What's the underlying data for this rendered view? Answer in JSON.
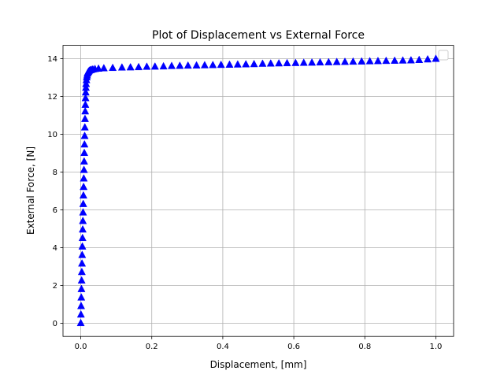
{
  "chart_data": {
    "type": "scatter",
    "title": "Plot of Displacement vs External Force",
    "xlabel": "Displacement, [mm]",
    "ylabel": "External Force, [N]",
    "xlim": [
      -0.05,
      1.05
    ],
    "ylim": [
      -0.7,
      14.7
    ],
    "xticks": [
      0.0,
      0.2,
      0.4,
      0.6,
      0.8,
      1.0
    ],
    "xtick_labels": [
      "0.0",
      "0.2",
      "0.4",
      "0.6",
      "0.8",
      "1.0"
    ],
    "yticks": [
      0,
      2,
      4,
      6,
      8,
      10,
      12,
      14
    ],
    "ytick_labels": [
      "0",
      "2",
      "4",
      "6",
      "8",
      "10",
      "12",
      "14"
    ],
    "grid": true,
    "legend": "upper right",
    "marker": "triangle",
    "color": "#0000ff",
    "series": [
      {
        "x": [
          0.0,
          0.0005,
          0.001,
          0.0015,
          0.002,
          0.0025,
          0.003,
          0.0035,
          0.004,
          0.0045,
          0.005,
          0.0055,
          0.006,
          0.0065,
          0.007,
          0.0075,
          0.008,
          0.0085,
          0.009,
          0.0095,
          0.01,
          0.0105,
          0.011,
          0.0115,
          0.012,
          0.0125,
          0.013,
          0.0135,
          0.014,
          0.0145,
          0.015,
          0.016,
          0.017,
          0.018,
          0.019,
          0.02,
          0.022,
          0.024,
          0.027,
          0.03,
          0.034,
          0.04,
          0.05,
          0.065,
          0.09,
          0.116,
          0.14,
          0.163,
          0.186,
          0.209,
          0.233,
          0.256,
          0.279,
          0.302,
          0.326,
          0.349,
          0.372,
          0.395,
          0.419,
          0.442,
          0.465,
          0.488,
          0.512,
          0.535,
          0.558,
          0.581,
          0.605,
          0.628,
          0.651,
          0.674,
          0.698,
          0.721,
          0.744,
          0.767,
          0.791,
          0.814,
          0.837,
          0.86,
          0.884,
          0.907,
          0.93,
          0.953,
          0.977,
          1.0
        ],
        "y": [
          0.0,
          0.45,
          0.9,
          1.35,
          1.8,
          2.25,
          2.7,
          3.15,
          3.6,
          4.05,
          4.5,
          4.95,
          5.4,
          5.85,
          6.3,
          6.75,
          7.2,
          7.65,
          8.1,
          8.55,
          9.0,
          9.45,
          9.9,
          10.35,
          10.8,
          11.2,
          11.55,
          11.9,
          12.2,
          12.45,
          12.65,
          12.85,
          13.0,
          13.1,
          13.2,
          13.25,
          13.3,
          13.35,
          13.38,
          13.4,
          13.42,
          13.44,
          13.46,
          13.48,
          13.5,
          13.52,
          13.53,
          13.54,
          13.56,
          13.57,
          13.58,
          13.6,
          13.61,
          13.62,
          13.63,
          13.64,
          13.65,
          13.66,
          13.67,
          13.68,
          13.69,
          13.7,
          13.72,
          13.73,
          13.74,
          13.75,
          13.76,
          13.77,
          13.78,
          13.79,
          13.8,
          13.81,
          13.82,
          13.83,
          13.84,
          13.85,
          13.86,
          13.87,
          13.88,
          13.89,
          13.9,
          13.92,
          13.95,
          13.98
        ]
      }
    ]
  }
}
